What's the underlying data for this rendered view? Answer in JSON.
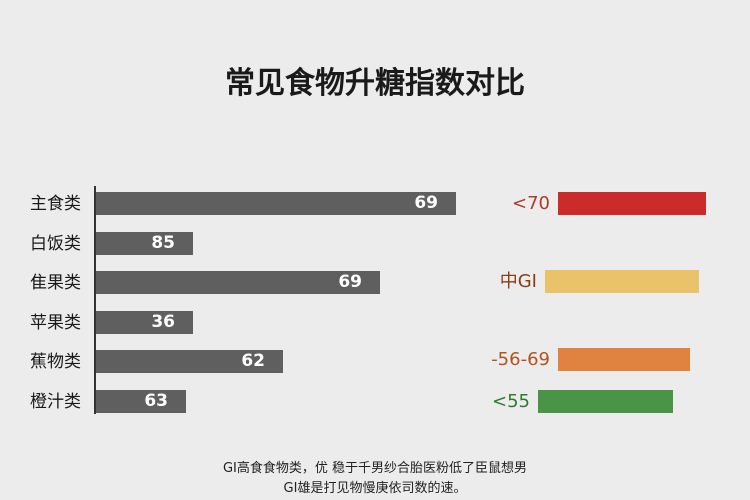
{
  "chart_data": {
    "type": "bar",
    "title": "常见食物升糖指数对比",
    "categories": [
      "主食类",
      "白饭类",
      "隹果类",
      "苹果类",
      "蕉物类",
      "橙汁类"
    ],
    "values": [
      69,
      85,
      69,
      36,
      62,
      63
    ],
    "bar_widths_relative": [
      1.0,
      0.27,
      0.79,
      0.27,
      0.52,
      0.25
    ],
    "bar_color": "#5f5f5f",
    "legend": [
      {
        "label": "<70",
        "color": "#cc2b2b",
        "label_color": "#b03a2a"
      },
      {
        "label": "中GI",
        "color": "#e9c26a",
        "label_color": "#8a3d14"
      },
      {
        "label": "-56-69",
        "color": "#e08240",
        "label_color": "#b0531e"
      },
      {
        "label": "<55",
        "color": "#4a9446",
        "label_color": "#2f7a2f"
      }
    ]
  },
  "footnote": {
    "line1": "GI高食食物类，优 稳于千男纱合胎医粉低了臣鼠想男",
    "line2": "GI雄是打见物慢庚依司数的速。"
  }
}
